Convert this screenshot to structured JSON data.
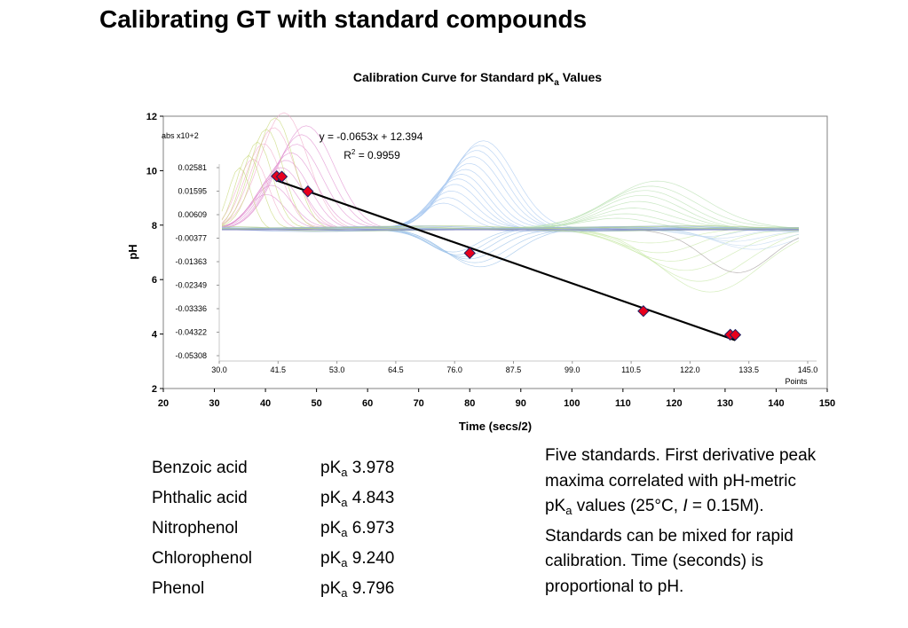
{
  "slide": {
    "title": "Calibrating GT with standard compounds"
  },
  "chart_data": {
    "type": "scatter",
    "title": "Calibration Curve for Standard pK",
    "title_sub": "a",
    "title_suffix": " Values",
    "xlabel": "Time (secs/2)",
    "ylabel": "pH",
    "xlim": [
      20,
      150
    ],
    "ylim": [
      2,
      12
    ],
    "x_ticks": [
      20,
      30,
      40,
      50,
      60,
      70,
      80,
      90,
      100,
      110,
      120,
      130,
      140,
      150
    ],
    "y_ticks": [
      2,
      4,
      6,
      8,
      10,
      12
    ],
    "points": {
      "x": [
        42.2,
        43.2,
        48.3,
        80.0,
        114.0,
        131.0,
        132.0
      ],
      "y": [
        9.796,
        9.78,
        9.24,
        6.973,
        4.843,
        3.978,
        3.97
      ]
    },
    "marker_color": "#e8001c",
    "line_color": "#000000",
    "fit": {
      "slope": -0.0653,
      "intercept": 12.394,
      "x_range": [
        42.2,
        132.0
      ]
    },
    "equation": "y = -0.0653x + 12.394",
    "r2_label": "R",
    "r2_sup": "2",
    "r2_value": " = 0.9959",
    "inset": {
      "unit_label": "abs x10+2",
      "y_ticks": [
        "0.02581",
        "0.01595",
        "0.00609",
        "-0.00377",
        "-0.01363",
        "-0.02349",
        "-0.03336",
        "-0.04322",
        "-0.05308"
      ],
      "x_ticks": [
        "30.0",
        "41.5",
        "53.0",
        "64.5",
        "76.0",
        "87.5",
        "99.0",
        "110.5",
        "122.0",
        "133.5",
        "145.0"
      ],
      "x_label": "Points"
    }
  },
  "compounds": [
    {
      "name": "Benzoic acid",
      "pka_label": "pK",
      "pka_sub": "a",
      "pka_value": " 3.978"
    },
    {
      "name": "Phthalic acid",
      "pka_label": "pK",
      "pka_sub": "a",
      "pka_value": " 4.843"
    },
    {
      "name": "Nitrophenol",
      "pka_label": "pK",
      "pka_sub": "a",
      "pka_value": " 6.973"
    },
    {
      "name": "Chlorophenol",
      "pka_label": "pK",
      "pka_sub": "a",
      "pka_value": " 9.240"
    },
    {
      "name": "Phenol",
      "pka_label": "pK",
      "pka_sub": "a",
      "pka_value": " 9.796"
    }
  ],
  "notes": {
    "line1": "Five standards. First derivative peak",
    "line2": "maxima correlated with pH-metric",
    "line3_pre": "pK",
    "line3_sub": "a",
    "line3_mid": " values (25°C, ",
    "line3_italic": "I",
    "line3_post": " = 0.15M).",
    "line4": "Standards can be mixed for rapid",
    "line5": "calibration. Time (seconds) is",
    "line6": "proportional to pH."
  }
}
